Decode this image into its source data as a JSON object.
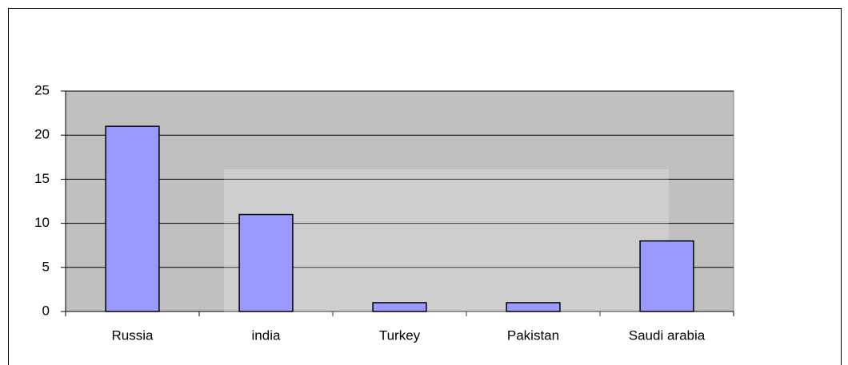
{
  "chart_data": {
    "type": "bar",
    "categories": [
      "Russia",
      "india",
      "Turkey",
      "Pakistan",
      "Saudi arabia"
    ],
    "values": [
      21,
      11,
      1,
      1,
      8
    ],
    "color": "#9999ff",
    "ylim": [
      0,
      25
    ],
    "yticks": [
      0,
      5,
      10,
      15,
      20,
      25
    ],
    "grid": true
  }
}
